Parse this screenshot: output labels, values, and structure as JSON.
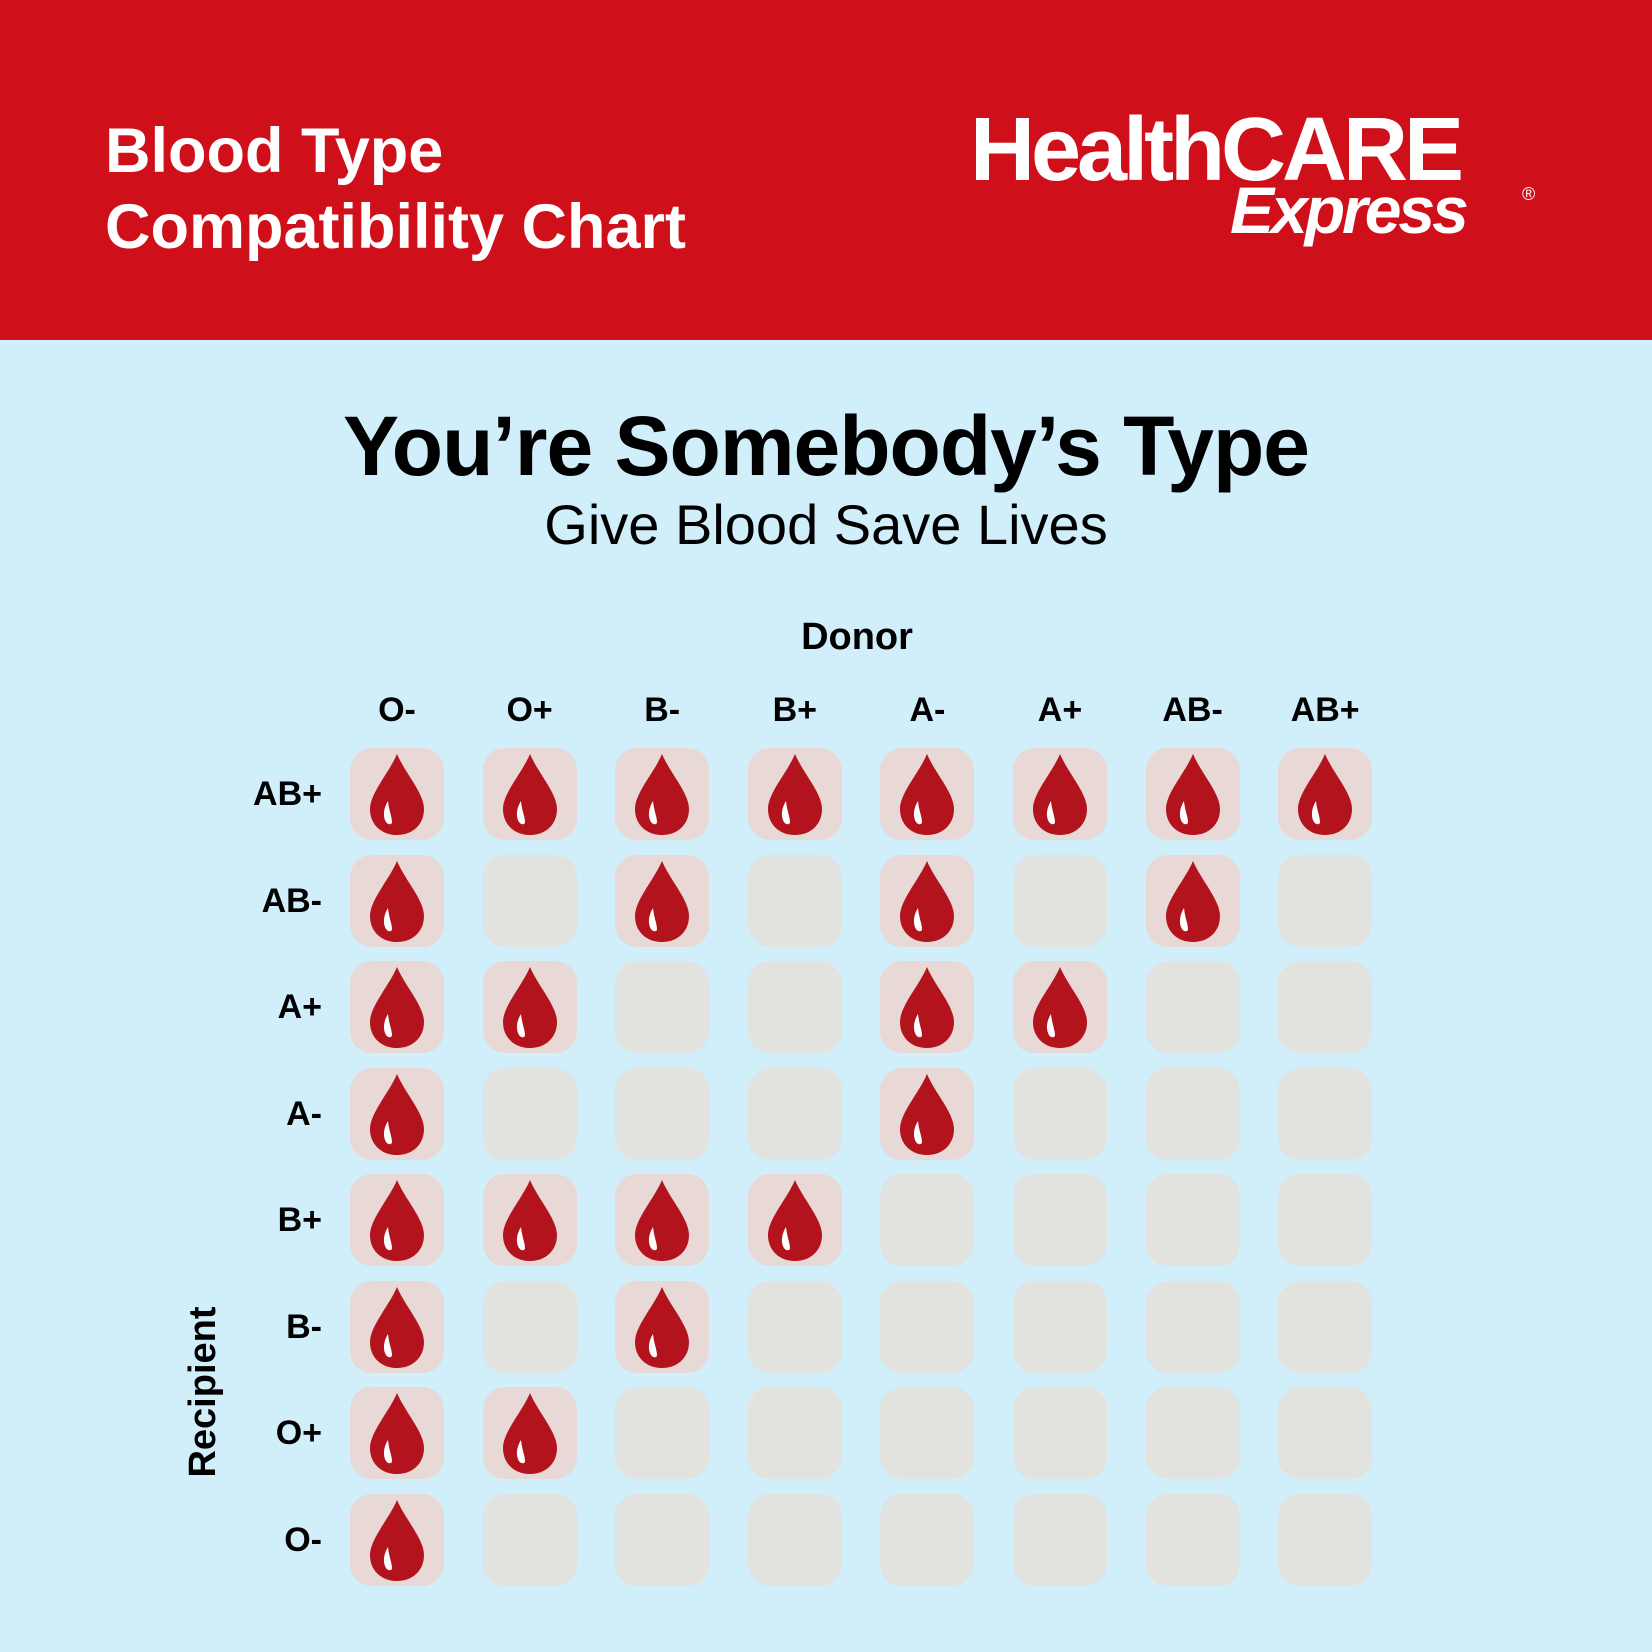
{
  "colors": {
    "header_bg": "#cf101a",
    "page_bg": "#d1eefb",
    "cell_empty": "#e2e3df",
    "cell_filled": "#e8d8d6",
    "drop": "#b3131d",
    "drop_highlight": "#ffffff"
  },
  "header": {
    "title_line1": "Blood Type",
    "title_line2": "Compatibility Chart",
    "logo_part1": "HealthCARE",
    "logo_part2": "Express",
    "logo_registered": "®"
  },
  "main": {
    "headline": "You’re Somebody’s Type",
    "subhead": "Give Blood Save Lives"
  },
  "chart_data": {
    "type": "table",
    "xlabel": "Donor",
    "ylabel": "Recipient",
    "columns": [
      "O-",
      "O+",
      "B-",
      "B+",
      "A-",
      "A+",
      "AB-",
      "AB+"
    ],
    "rows": [
      "AB+",
      "AB-",
      "A+",
      "A-",
      "B+",
      "B-",
      "O+",
      "O-"
    ],
    "icon": "blood-drop-icon",
    "compatible": [
      [
        1,
        1,
        1,
        1,
        1,
        1,
        1,
        1
      ],
      [
        1,
        0,
        1,
        0,
        1,
        0,
        1,
        0
      ],
      [
        1,
        1,
        0,
        0,
        1,
        1,
        0,
        0
      ],
      [
        1,
        0,
        0,
        0,
        1,
        0,
        0,
        0
      ],
      [
        1,
        1,
        1,
        1,
        0,
        0,
        0,
        0
      ],
      [
        1,
        0,
        1,
        0,
        0,
        0,
        0,
        0
      ],
      [
        1,
        1,
        0,
        0,
        0,
        0,
        0,
        0
      ],
      [
        1,
        0,
        0,
        0,
        0,
        0,
        0,
        0
      ]
    ]
  }
}
